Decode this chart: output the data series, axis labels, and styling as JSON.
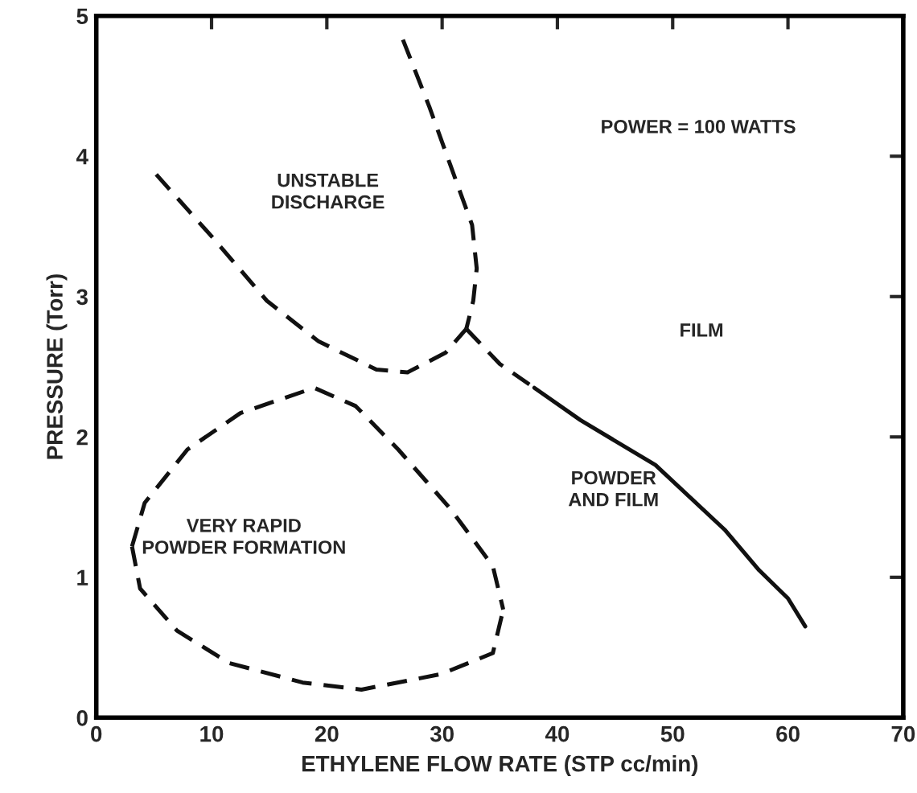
{
  "chart_data": {
    "type": "line",
    "xlabel": "ETHYLENE FLOW RATE (STP cc/min)",
    "ylabel": "PRESSURE (Torr)",
    "xlim": [
      0,
      70
    ],
    "ylim": [
      0,
      5
    ],
    "xticks": [
      0,
      10,
      20,
      30,
      40,
      50,
      60,
      70
    ],
    "yticks": [
      0,
      1,
      2,
      3,
      4,
      5
    ],
    "grid": false,
    "marker": "none",
    "series": [
      {
        "color": "#111111",
        "line_style": "dashed",
        "x": [
          5.2,
          10.1,
          14.8,
          19.3,
          24.3,
          27,
          30.3,
          32.1
        ],
        "values": [
          3.87,
          3.42,
          2.97,
          2.68,
          2.48,
          2.46,
          2.6,
          2.77
        ]
      },
      {
        "color": "#111111",
        "line_style": "dashed",
        "x": [
          26.6,
          28.9,
          30.7,
          32.6,
          33,
          32.7,
          32.1
        ],
        "values": [
          4.83,
          4.35,
          3.94,
          3.51,
          3.2,
          2.97,
          2.77
        ]
      },
      {
        "color": "#111111",
        "line_style": "dashed",
        "x": [
          32.1,
          35,
          38
        ],
        "values": [
          2.77,
          2.52,
          2.35
        ]
      },
      {
        "color": "#111111",
        "line_style": "solid",
        "x": [
          38,
          42,
          48.5,
          54.5,
          57.5,
          60,
          61.5
        ],
        "values": [
          2.35,
          2.12,
          1.8,
          1.34,
          1.05,
          0.85,
          0.65
        ]
      },
      {
        "color": "#111111",
        "line_style": "dashed",
        "x": [
          3.1,
          4.2,
          7.9,
          12.5,
          18.9,
          22.5,
          26.2,
          30.7,
          34.4,
          35.3
        ],
        "values": [
          1.22,
          1.53,
          1.91,
          2.17,
          2.35,
          2.22,
          1.91,
          1.49,
          1.08,
          0.77
        ]
      },
      {
        "color": "#111111",
        "line_style": "dashed",
        "x": [
          3.1,
          3.8,
          7,
          11.5,
          17.9,
          23,
          29.9,
          34.4,
          35.3
        ],
        "values": [
          1.22,
          0.92,
          0.62,
          0.39,
          0.25,
          0.2,
          0.31,
          0.46,
          0.77
        ]
      }
    ],
    "annotations": [
      "UNSTABLE\nDISCHARGE",
      "POWER = 100 WATTS",
      "FILM",
      "VERY RAPID\nPOWDER FORMATION",
      "POWDER\nAND FILM"
    ]
  }
}
